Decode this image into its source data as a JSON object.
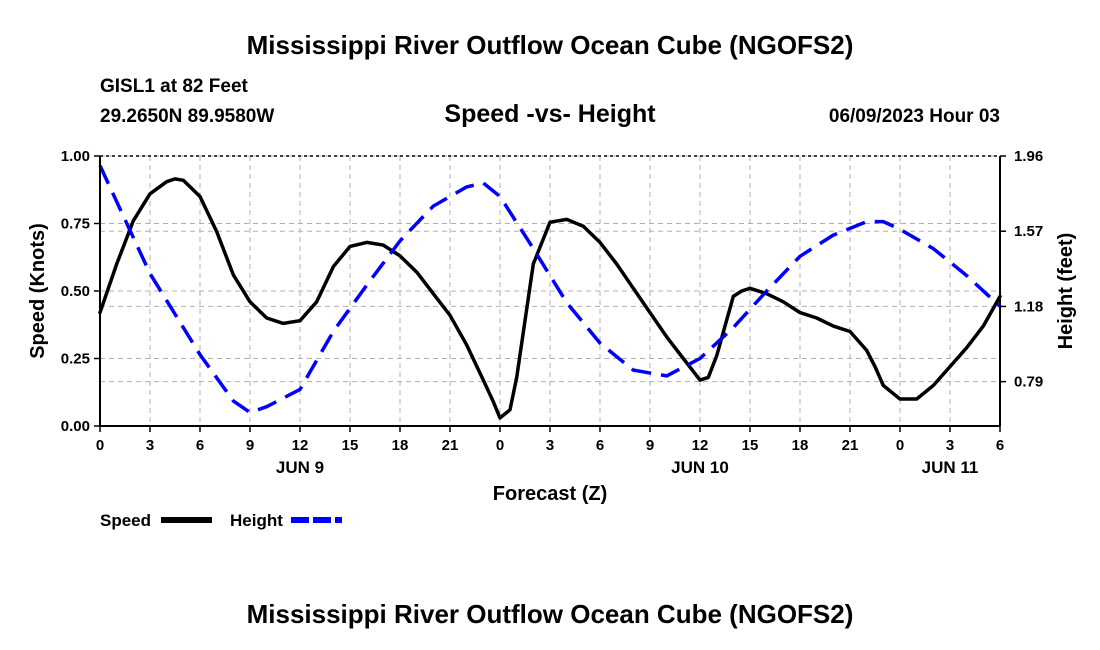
{
  "header": {
    "title": "Mississippi River Outflow Ocean Cube (NGOFS2)",
    "station": "GISL1 at 82 Feet",
    "coordinates": "29.2650N  89.9580W",
    "timestamp": "06/09/2023 Hour 03"
  },
  "footer": {
    "title": "Mississippi River Outflow Ocean Cube (NGOFS2)"
  },
  "chart_data": {
    "type": "line",
    "title": "Speed -vs- Height",
    "xlabel": "Forecast (Z)",
    "ylabel": "Speed (Knots)",
    "y2label": "Height (feet)",
    "xlim": [
      0,
      54
    ],
    "x_ticks": [
      0,
      3,
      6,
      9,
      12,
      15,
      18,
      21,
      24,
      27,
      30,
      33,
      36,
      39,
      42,
      45,
      48,
      51,
      54
    ],
    "x_tick_labels": [
      "0",
      "3",
      "6",
      "9",
      "12",
      "15",
      "18",
      "21",
      "0",
      "3",
      "6",
      "9",
      "12",
      "15",
      "18",
      "21",
      "0",
      "3",
      "6"
    ],
    "day_labels": [
      {
        "label": "JUN 9",
        "at": 12
      },
      {
        "label": "JUN 10",
        "at": 36
      },
      {
        "label": "JUN 11",
        "at": 51
      }
    ],
    "ylim": [
      0,
      1
    ],
    "y_ticks": [
      0,
      0.25,
      0.5,
      0.75,
      1.0
    ],
    "y_tick_labels": [
      "0.00",
      "0.25",
      "0.50",
      "0.75",
      "1.00"
    ],
    "y2lim": [
      0.56,
      1.96
    ],
    "y2_ticks": [
      0.79,
      1.18,
      1.57,
      1.96
    ],
    "y2_tick_labels": [
      "0.79",
      "1.18",
      "1.57",
      "1.96"
    ],
    "grid": true,
    "legend_position": "bottom-left",
    "series": [
      {
        "name": "Speed",
        "axis": "left",
        "color": "#000000",
        "style": "solid",
        "x": [
          0,
          1,
          2,
          3,
          4,
          4.5,
          5,
          6,
          7,
          8,
          9,
          10,
          11,
          12,
          13,
          14,
          15,
          16,
          17,
          18,
          19,
          20,
          21,
          22,
          23,
          23.6,
          24,
          24.6,
          25,
          26,
          27,
          27.5,
          28,
          29,
          30,
          31,
          32,
          33,
          34,
          35,
          36,
          36.5,
          37,
          38,
          38.5,
          39,
          40,
          41,
          42,
          43,
          44,
          45,
          46,
          46.5,
          47,
          48,
          49,
          50,
          51,
          52,
          53,
          54
        ],
        "values": [
          0.42,
          0.6,
          0.76,
          0.86,
          0.905,
          0.915,
          0.91,
          0.85,
          0.72,
          0.56,
          0.46,
          0.4,
          0.38,
          0.39,
          0.46,
          0.59,
          0.665,
          0.68,
          0.67,
          0.63,
          0.57,
          0.49,
          0.41,
          0.3,
          0.17,
          0.09,
          0.03,
          0.06,
          0.18,
          0.6,
          0.755,
          0.76,
          0.765,
          0.74,
          0.68,
          0.6,
          0.51,
          0.42,
          0.33,
          0.25,
          0.17,
          0.18,
          0.26,
          0.48,
          0.5,
          0.51,
          0.49,
          0.46,
          0.42,
          0.4,
          0.37,
          0.35,
          0.28,
          0.22,
          0.15,
          0.1,
          0.1,
          0.15,
          0.22,
          0.29,
          0.37,
          0.48
        ]
      },
      {
        "name": "Height",
        "axis": "right",
        "color": "#0000ff",
        "style": "dashed",
        "x": [
          0,
          3,
          6,
          8,
          9,
          10,
          12,
          14,
          16,
          18,
          20,
          22,
          23,
          24,
          26,
          28,
          30,
          32,
          34,
          36,
          38,
          40,
          42,
          44,
          46,
          47,
          48,
          50,
          52,
          54
        ],
        "values": [
          1.91,
          1.35,
          0.93,
          0.69,
          0.63,
          0.66,
          0.75,
          1.05,
          1.29,
          1.52,
          1.7,
          1.8,
          1.82,
          1.75,
          1.48,
          1.2,
          0.99,
          0.85,
          0.82,
          0.91,
          1.07,
          1.26,
          1.44,
          1.55,
          1.62,
          1.62,
          1.58,
          1.48,
          1.34,
          1.18
        ]
      }
    ]
  }
}
